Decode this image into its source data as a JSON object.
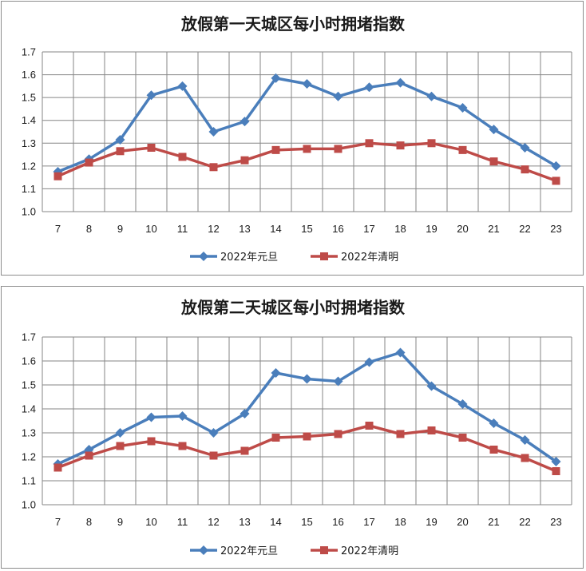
{
  "colors": {
    "series_0": "#4a7ebb",
    "series_1": "#be4b48",
    "grid": "#868686",
    "axis": "#868686"
  },
  "chart_data": [
    {
      "type": "line",
      "title": "放假第一天城区每小时拥堵指数",
      "x": [
        "7",
        "8",
        "9",
        "10",
        "11",
        "12",
        "13",
        "14",
        "15",
        "16",
        "17",
        "18",
        "19",
        "20",
        "21",
        "22",
        "23"
      ],
      "ylim": [
        1.0,
        1.7
      ],
      "yticks": [
        "1.0",
        "1.1",
        "1.2",
        "1.3",
        "1.4",
        "1.5",
        "1.6",
        "1.7"
      ],
      "grid": true,
      "legend": "bottom",
      "series": [
        {
          "name": "2022年元旦",
          "marker": "diamond",
          "values": [
            1.175,
            1.23,
            1.315,
            1.51,
            1.55,
            1.35,
            1.395,
            1.585,
            1.56,
            1.505,
            1.545,
            1.565,
            1.505,
            1.455,
            1.36,
            1.28,
            1.2
          ]
        },
        {
          "name": "2022年清明",
          "marker": "square",
          "values": [
            1.155,
            1.215,
            1.265,
            1.28,
            1.24,
            1.195,
            1.225,
            1.27,
            1.275,
            1.275,
            1.3,
            1.29,
            1.3,
            1.27,
            1.22,
            1.185,
            1.135
          ]
        }
      ]
    },
    {
      "type": "line",
      "title": "放假第二天城区每小时拥堵指数",
      "x": [
        "7",
        "8",
        "9",
        "10",
        "11",
        "12",
        "13",
        "14",
        "15",
        "16",
        "17",
        "18",
        "19",
        "20",
        "21",
        "22",
        "23"
      ],
      "ylim": [
        1.0,
        1.7
      ],
      "yticks": [
        "1.0",
        "1.1",
        "1.2",
        "1.3",
        "1.4",
        "1.5",
        "1.6",
        "1.7"
      ],
      "grid": true,
      "legend": "bottom",
      "series": [
        {
          "name": "2022年元旦",
          "marker": "diamond",
          "values": [
            1.17,
            1.23,
            1.3,
            1.365,
            1.37,
            1.3,
            1.38,
            1.55,
            1.525,
            1.515,
            1.595,
            1.635,
            1.495,
            1.42,
            1.34,
            1.27,
            1.18
          ]
        },
        {
          "name": "2022年清明",
          "marker": "square",
          "values": [
            1.155,
            1.205,
            1.245,
            1.265,
            1.245,
            1.205,
            1.225,
            1.28,
            1.285,
            1.295,
            1.33,
            1.295,
            1.31,
            1.28,
            1.23,
            1.195,
            1.14
          ]
        }
      ]
    }
  ]
}
